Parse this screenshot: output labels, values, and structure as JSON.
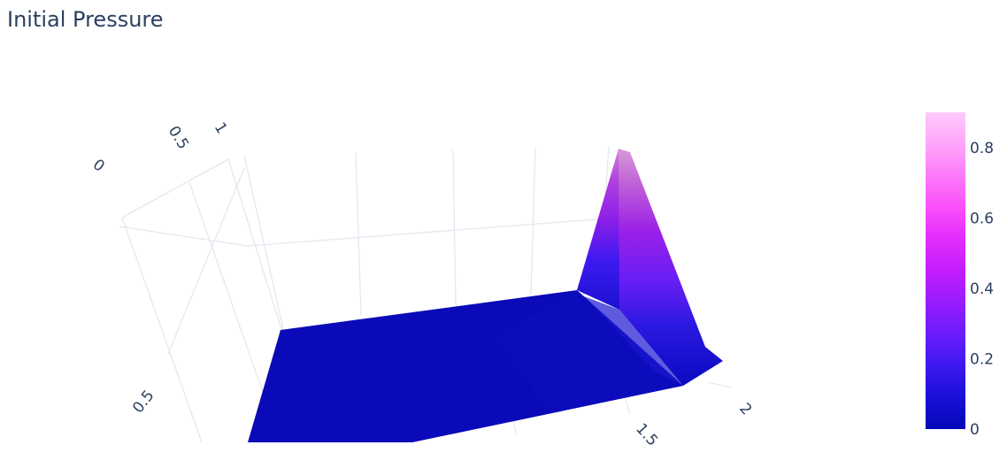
{
  "page": {
    "title": "Initial Pressure"
  },
  "chart_data": {
    "type": "surface",
    "title": "Initial Pressure",
    "colorscale": [
      "#0508b8",
      "#1910d8",
      "#3c19f0",
      "#6b1cfb",
      "#981cfd",
      "#c21dfc",
      "#e32cfc",
      "#fb4efc",
      "#fc7af9",
      "#fea6fa",
      "#fecafb"
    ],
    "colorbar": {
      "range": [
        0,
        0.9
      ],
      "ticks": [
        0,
        0.2,
        0.4,
        0.6,
        0.8
      ],
      "tick_labels": [
        "0",
        "0.2",
        "0.4",
        "0.6",
        "0.8"
      ]
    },
    "axes": {
      "axis_a_ticks": [
        {
          "value": 0,
          "label": "0"
        },
        {
          "value": 0.5,
          "label": "0.5"
        },
        {
          "value": 1,
          "label": "1"
        }
      ],
      "axis_b_ticks": [
        {
          "value": 0.5,
          "label": "0.5"
        }
      ],
      "axis_c_ticks": [
        {
          "value": 1.5,
          "label": "1.5"
        },
        {
          "value": 2,
          "label": "2"
        }
      ]
    },
    "surface": {
      "description_values": "pressure is ~0 everywhere except a ridge near x=2 peaking at ~0.9",
      "min": 0,
      "max": 0.9
    }
  }
}
